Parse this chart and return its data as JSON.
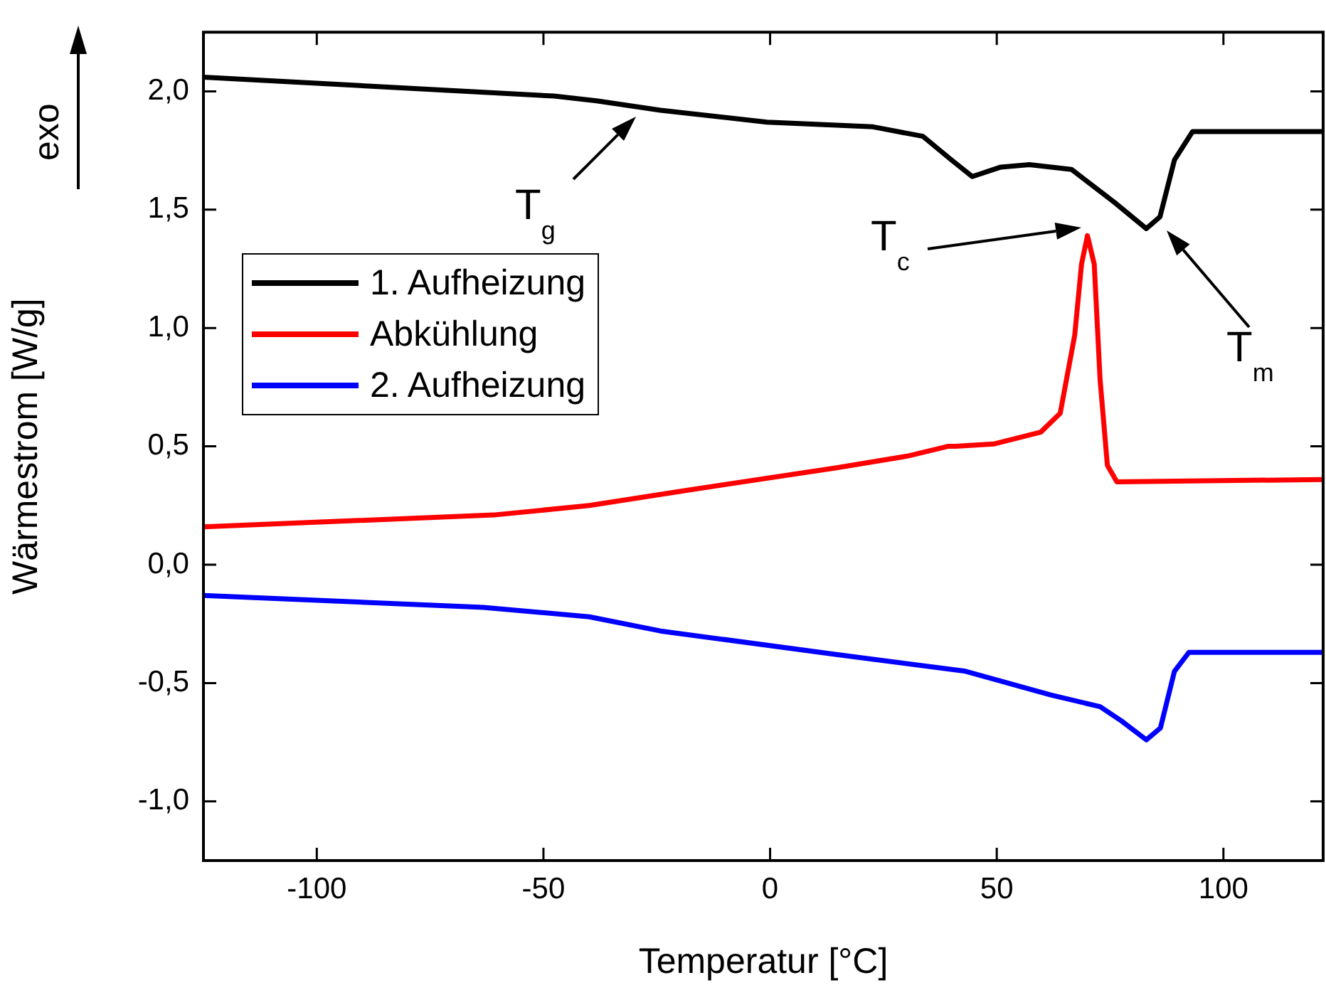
{
  "chart_data": {
    "type": "line",
    "xlabel": "Temperatur [°C]",
    "ylabel": "Wärmestrom [W/g]",
    "xlim": [
      -125,
      122
    ],
    "ylim": [
      -1.25,
      2.25
    ],
    "xticks": [
      -100,
      -50,
      0,
      50,
      100
    ],
    "yticks": [
      {
        "value": -1,
        "label": "-1,0"
      },
      {
        "value": -0.5,
        "label": "-0,5"
      },
      {
        "value": 0,
        "label": "0,0"
      },
      {
        "value": 0.5,
        "label": "0,5"
      },
      {
        "value": 1,
        "label": "1,0"
      },
      {
        "value": 1.5,
        "label": "1,5"
      },
      {
        "value": 2,
        "label": "2,0"
      }
    ],
    "grid": false,
    "legend": "left",
    "line_style": "solid",
    "marker": "none",
    "series": [
      {
        "name": "1. Aufheizung",
        "color": "#000000",
        "x": [
          -125,
          -47.7,
          -38.3,
          -24.2,
          -0.7,
          22.7,
          33.7,
          40,
          44.6,
          50.9,
          57.2,
          66.5,
          76,
          83,
          86,
          89.2,
          93.2,
          118.8,
          122
        ],
        "values": [
          2.06,
          1.98,
          1.96,
          1.92,
          1.87,
          1.85,
          1.81,
          1.71,
          1.64,
          1.68,
          1.69,
          1.67,
          1.53,
          1.42,
          1.47,
          1.71,
          1.83,
          1.83,
          1.83
        ]
      },
      {
        "name": "Abkühlung",
        "color": "#ff0000",
        "x": [
          -125,
          -61,
          -39.9,
          -16.4,
          14.9,
          30.6,
          39.2,
          40.9,
          49.3,
          59.7,
          64,
          67.2,
          68.7,
          70,
          71.5,
          72.8,
          74.4,
          76.5,
          122
        ],
        "values": [
          0.16,
          0.21,
          0.25,
          0.32,
          0.41,
          0.46,
          0.5,
          0.5,
          0.51,
          0.56,
          0.64,
          0.97,
          1.27,
          1.39,
          1.27,
          0.78,
          0.42,
          0.35,
          0.36
        ]
      },
      {
        "name": "2. Aufheizung",
        "color": "#0000ff",
        "x": [
          -125,
          -63.3,
          -39.9,
          -24.2,
          14.9,
          43.1,
          61.9,
          72.8,
          77.5,
          83,
          86.1,
          89.2,
          92.4,
          118.8,
          122
        ],
        "values": [
          -0.13,
          -0.18,
          -0.22,
          -0.28,
          -0.38,
          -0.45,
          -0.55,
          -0.6,
          -0.66,
          -0.74,
          -0.69,
          -0.45,
          -0.37,
          -0.37,
          -0.37
        ]
      }
    ],
    "annotations": [
      "exo",
      "T$_{g}$",
      "T$_{c}$",
      "T$_{m}$"
    ]
  }
}
